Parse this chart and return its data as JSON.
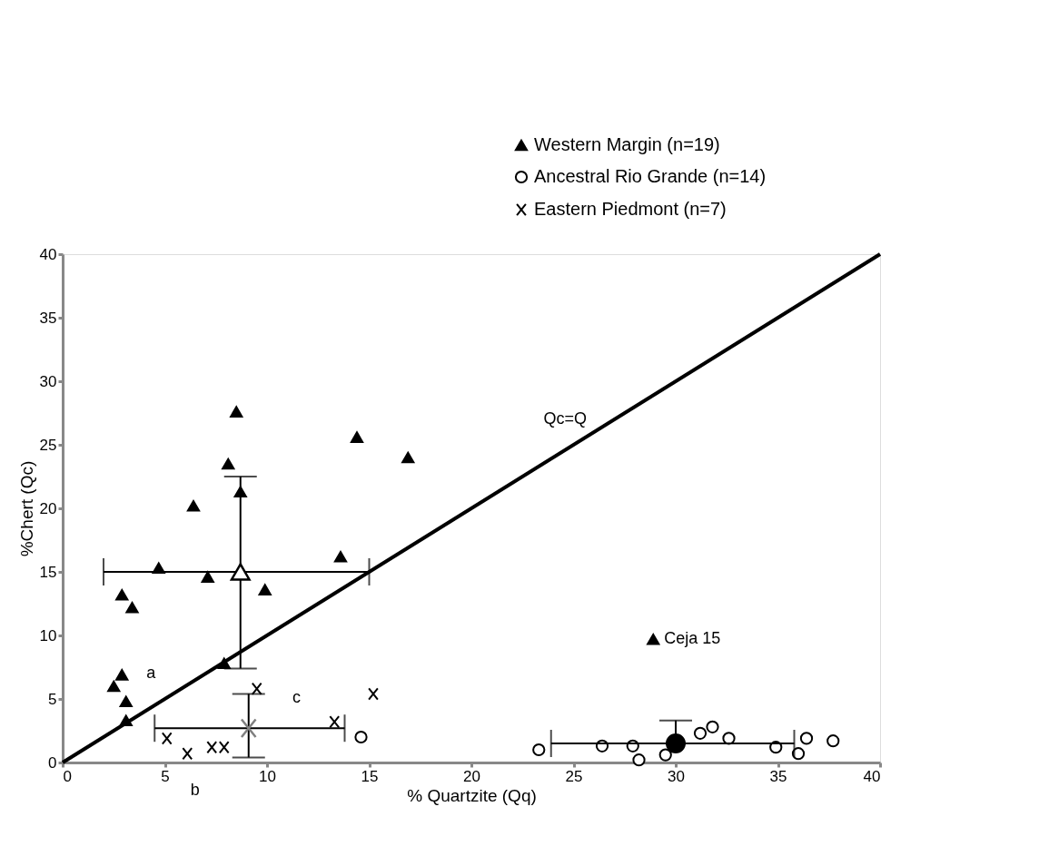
{
  "chart_data": {
    "type": "scatter",
    "xlabel": "% Quartzite (Qq)",
    "ylabel": "%Chert (Qc)",
    "xlim": [
      0,
      40
    ],
    "ylim": [
      0,
      40
    ],
    "xticks": [
      0,
      5,
      10,
      15,
      20,
      25,
      30,
      35,
      40
    ],
    "yticks": [
      0,
      5,
      10,
      15,
      20,
      25,
      30,
      35,
      40
    ],
    "grid": false,
    "legend": "top right",
    "annotations": [
      {
        "text": "Ceja 15",
        "x": 28.9,
        "y": 9.7
      },
      "a",
      "c",
      "b"
    ],
    "series": [
      {
        "name": "Western Margin (n=19)",
        "type": "scatter",
        "marker": "triangle",
        "color": "#000000",
        "x": [
          8.5,
          14.4,
          16.9,
          8.1,
          8.7,
          6.4,
          13.6,
          4.7,
          7.1,
          9.9,
          2.9,
          3.4,
          7.9,
          2.9,
          2.5,
          3.1,
          3.1,
          28.9
        ],
        "values": [
          27.6,
          25.6,
          24.0,
          23.5,
          21.3,
          20.2,
          16.2,
          15.3,
          14.6,
          13.6,
          13.2,
          12.2,
          7.8,
          6.9,
          6.0,
          4.8,
          3.3,
          9.7
        ]
      },
      {
        "name": "Ancestral Rio Grande (n=14)",
        "type": "scatter",
        "marker": "circle",
        "color": "#000000",
        "x": [
          14.6,
          23.3,
          26.4,
          27.9,
          28.2,
          29.5,
          31.2,
          31.8,
          32.6,
          34.9,
          36.0,
          36.4,
          37.7
        ],
        "values": [
          2.0,
          1.0,
          1.3,
          1.3,
          0.2,
          0.6,
          2.3,
          2.8,
          1.9,
          1.2,
          0.7,
          1.9,
          1.7
        ]
      },
      {
        "name": "Eastern Piedmont (n=7)",
        "type": "scatter",
        "marker": "cross",
        "color": "#000000",
        "x": [
          5.1,
          6.1,
          7.3,
          7.9,
          9.5,
          15.2,
          13.3
        ],
        "values": [
          1.9,
          0.7,
          1.2,
          1.2,
          5.8,
          5.4,
          3.2
        ]
      },
      {
        "type": "scatter",
        "marker": "triangle",
        "color": "#000000",
        "x": [
          8.7
        ],
        "values": [
          15.0
        ],
        "errors": [
          [
            7.4,
            22.5
          ]
        ],
        "xerrors": [
          [
            2.0,
            15.0
          ]
        ]
      },
      {
        "type": "scatter",
        "marker": "circle",
        "color": "#000000",
        "x": [
          30.0
        ],
        "values": [
          1.5
        ],
        "errors": [
          [
            1.5,
            3.3
          ]
        ],
        "xerrors": [
          [
            23.9,
            35.8
          ]
        ]
      },
      {
        "type": "scatter",
        "marker": "cross",
        "color": "#808080",
        "x": [
          9.1
        ],
        "values": [
          2.7
        ],
        "errors": [
          [
            0.4,
            5.4
          ]
        ],
        "xerrors": [
          [
            4.5,
            13.8
          ]
        ]
      },
      {
        "type": "line",
        "name": "Qc=Q",
        "color": "#000000",
        "x": [
          0,
          40
        ],
        "values": [
          0,
          40
        ]
      }
    ]
  }
}
